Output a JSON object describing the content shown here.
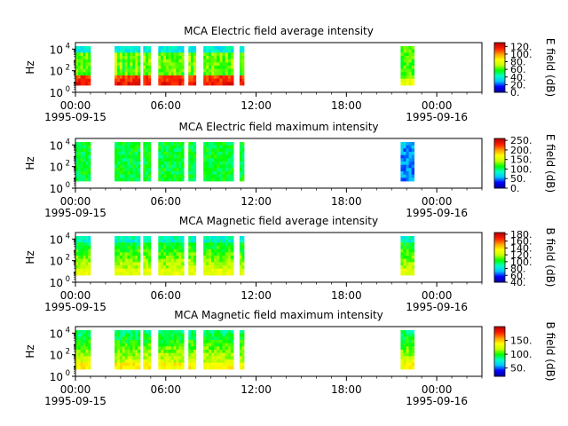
{
  "chart_data": [
    {
      "type": "heatmap",
      "title": "MCA  Electric field average intensity",
      "ylabel": "Hz",
      "y_scale": "log",
      "ylim": [
        1,
        40000
      ],
      "y_ticks": [
        {
          "base": "10",
          "exp": "0"
        },
        {
          "base": "10",
          "exp": "2"
        },
        {
          "base": "10",
          "exp": "4"
        }
      ],
      "x_tick_labels": [
        "00:00",
        "06:00",
        "12:00",
        "18:00",
        "00:00"
      ],
      "x_date_labels": [
        "1995-09-15",
        "1995-09-16"
      ],
      "colorbar_label": "E field (dB)",
      "colorbar_ticks": [
        "0.",
        "20.",
        "40.",
        "60.",
        "80.",
        "100.",
        "120."
      ],
      "colorbar_range": [
        0,
        130
      ]
    },
    {
      "type": "heatmap",
      "title": "MCA  Electric field maximum intensity",
      "ylabel": "Hz",
      "y_scale": "log",
      "ylim": [
        1,
        40000
      ],
      "y_ticks": [
        {
          "base": "10",
          "exp": "0"
        },
        {
          "base": "10",
          "exp": "2"
        },
        {
          "base": "10",
          "exp": "4"
        }
      ],
      "x_tick_labels": [
        "00:00",
        "06:00",
        "12:00",
        "18:00",
        "00:00"
      ],
      "x_date_labels": [
        "1995-09-15",
        "1995-09-16"
      ],
      "colorbar_label": "E field (dB)",
      "colorbar_ticks": [
        "0.",
        "50.",
        "100.",
        "150.",
        "200.",
        "250."
      ],
      "colorbar_range": [
        0,
        260
      ]
    },
    {
      "type": "heatmap",
      "title": "MCA  Magnetic field average intensity",
      "ylabel": "Hz",
      "y_scale": "log",
      "ylim": [
        1,
        40000
      ],
      "y_ticks": [
        {
          "base": "10",
          "exp": "0"
        },
        {
          "base": "10",
          "exp": "2"
        },
        {
          "base": "10",
          "exp": "4"
        }
      ],
      "x_tick_labels": [
        "00:00",
        "06:00",
        "12:00",
        "18:00",
        "00:00"
      ],
      "x_date_labels": [
        "1995-09-15",
        "1995-09-16"
      ],
      "colorbar_label": "B field (dB)",
      "colorbar_ticks": [
        "40.",
        "60.",
        "80.",
        "100.",
        "120.",
        "140.",
        "160.",
        "180."
      ],
      "colorbar_range": [
        40,
        185
      ]
    },
    {
      "type": "heatmap",
      "title": "MCA  Magnetic field maximum intensity",
      "ylabel": "Hz",
      "y_scale": "log",
      "ylim": [
        1,
        40000
      ],
      "y_ticks": [
        {
          "base": "10",
          "exp": "0"
        },
        {
          "base": "10",
          "exp": "2"
        },
        {
          "base": "10",
          "exp": "4"
        }
      ],
      "x_tick_labels": [
        "00:00",
        "06:00",
        "12:00",
        "18:00",
        "00:00"
      ],
      "x_date_labels": [
        "1995-09-15",
        "1995-09-16"
      ],
      "colorbar_label": "B field (dB)",
      "colorbar_ticks": [
        "50.",
        "100.",
        "150."
      ],
      "colorbar_range": [
        20,
        200
      ]
    }
  ],
  "data_segments_hours": [
    [
      0.0,
      1.0
    ],
    [
      2.6,
      4.3
    ],
    [
      4.5,
      5.0
    ],
    [
      5.5,
      7.2
    ],
    [
      7.5,
      8.0
    ],
    [
      8.5,
      9.2
    ],
    [
      9.2,
      10.5
    ],
    [
      10.9,
      11.2
    ],
    [
      21.6,
      22.5
    ]
  ],
  "colormap": [
    "#0000a0",
    "#0000ff",
    "#00c8ff",
    "#00ffc8",
    "#00ff00",
    "#c8ff00",
    "#ffff00",
    "#ffa000",
    "#ff2000",
    "#c00000"
  ]
}
